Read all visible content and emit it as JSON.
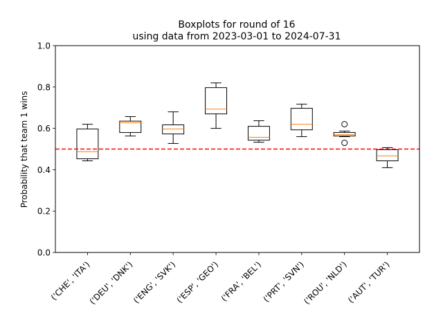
{
  "chart_data": {
    "type": "boxplot",
    "title_line1": "Boxplots for round of 16",
    "title_line2": "using data from 2023-03-01 to 2024-07-31",
    "xlabel": "",
    "ylabel": "Probability that team 1 wins",
    "ylim": [
      0.0,
      1.0
    ],
    "yticks": [
      "0.0",
      "0.2",
      "0.4",
      "0.6",
      "0.8",
      "1.0"
    ],
    "categories": [
      "('CHE', 'ITA')",
      "('DEU', 'DNK')",
      "('ENG', 'SVK')",
      "('ESP', 'GEO')",
      "('FRA', 'BEL')",
      "('PRT', 'SVN')",
      "('ROU', 'NLD')",
      "('AUT', 'TUR')"
    ],
    "boxes": [
      {
        "whislo": 0.443,
        "q1": 0.453,
        "med": 0.487,
        "q3": 0.597,
        "whishi": 0.62,
        "fliers": []
      },
      {
        "whislo": 0.563,
        "q1": 0.58,
        "med": 0.627,
        "q3": 0.635,
        "whishi": 0.657,
        "fliers": []
      },
      {
        "whislo": 0.527,
        "q1": 0.573,
        "med": 0.597,
        "q3": 0.617,
        "whishi": 0.68,
        "fliers": []
      },
      {
        "whislo": 0.6,
        "q1": 0.67,
        "med": 0.693,
        "q3": 0.797,
        "whishi": 0.82,
        "fliers": []
      },
      {
        "whislo": 0.533,
        "q1": 0.543,
        "med": 0.557,
        "q3": 0.61,
        "whishi": 0.637,
        "fliers": []
      },
      {
        "whislo": 0.56,
        "q1": 0.593,
        "med": 0.62,
        "q3": 0.697,
        "whishi": 0.717,
        "fliers": []
      },
      {
        "whislo": 0.56,
        "q1": 0.563,
        "med": 0.57,
        "q3": 0.58,
        "whishi": 0.587,
        "fliers": [
          0.62,
          0.53
        ]
      },
      {
        "whislo": 0.41,
        "q1": 0.443,
        "med": 0.467,
        "q3": 0.497,
        "whishi": 0.507,
        "fliers": []
      }
    ],
    "reference_line": {
      "y": 0.5,
      "color": "#ff0000",
      "style": "dashed"
    },
    "colors": {
      "box": "#000000",
      "median": "#ff7f0e",
      "reference": "#ff0000"
    },
    "grid": false,
    "legend": "none"
  }
}
